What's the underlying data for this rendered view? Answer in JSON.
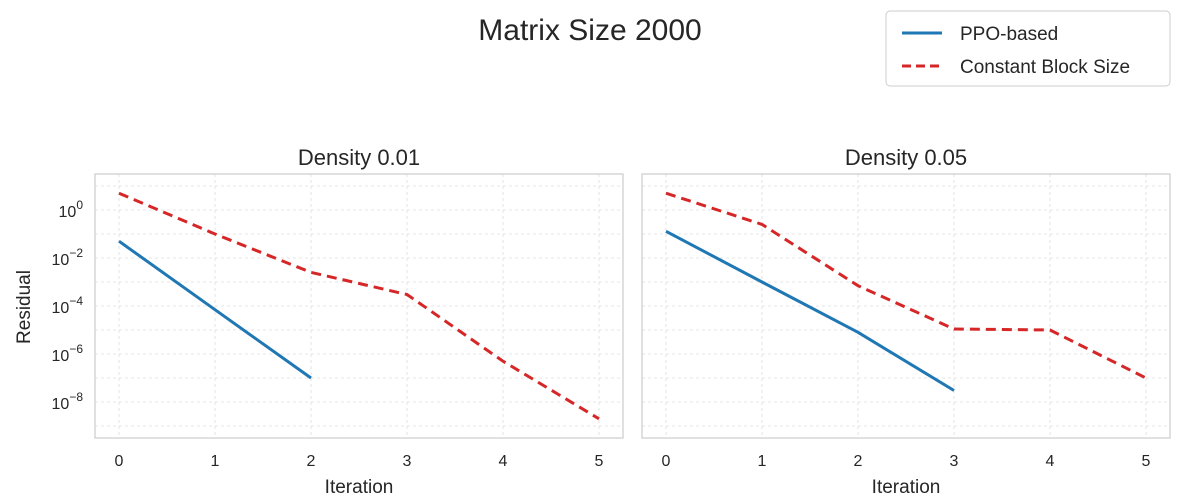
{
  "figure": {
    "title": "Matrix Size 2000",
    "ylabel": "Residual"
  },
  "legend": {
    "placement": "top-right",
    "entries": [
      {
        "label": "PPO-based",
        "color": "#1f77b4",
        "style": "solid"
      },
      {
        "label": "Constant Block Size",
        "color": "#d62728",
        "style": "dashed"
      }
    ]
  },
  "chart_data": [
    {
      "type": "line",
      "title": "Density 0.01",
      "xlabel": "Iteration",
      "ylabel": "Residual",
      "yscale": "log",
      "xlim": [
        -0.25,
        5.25
      ],
      "ylim_log10": [
        -9.5,
        1.5
      ],
      "grid": true,
      "x_ticks": [
        0,
        1,
        2,
        3,
        4,
        5
      ],
      "y_ticks_exp": [
        0,
        -2,
        -4,
        -6,
        -8
      ],
      "series": [
        {
          "name": "PPO-based",
          "color": "#1f77b4",
          "style": "solid",
          "x": [
            0,
            1,
            2
          ],
          "y": [
            0.05,
            7e-05,
            1e-07
          ]
        },
        {
          "name": "Constant Block Size",
          "color": "#d62728",
          "style": "dashed",
          "x": [
            0,
            1,
            2,
            3,
            4,
            5
          ],
          "y": [
            5.0,
            0.1,
            0.0025,
            0.0003,
            5e-07,
            2e-09
          ]
        }
      ]
    },
    {
      "type": "line",
      "title": "Density 0.05",
      "xlabel": "Iteration",
      "ylabel": "",
      "yscale": "log",
      "xlim": [
        -0.25,
        5.25
      ],
      "ylim_log10": [
        -9.5,
        1.5
      ],
      "grid": true,
      "x_ticks": [
        0,
        1,
        2,
        3,
        4,
        5
      ],
      "series": [
        {
          "name": "PPO-based",
          "color": "#1f77b4",
          "style": "solid",
          "x": [
            0,
            1,
            2,
            3
          ],
          "y": [
            0.13,
            0.001,
            8e-06,
            3e-08
          ]
        },
        {
          "name": "Constant Block Size",
          "color": "#d62728",
          "style": "dashed",
          "x": [
            0,
            1,
            2,
            3,
            4,
            5
          ],
          "y": [
            5.0,
            0.25,
            0.0007,
            1.1e-05,
            1e-05,
            1e-07
          ]
        }
      ]
    }
  ]
}
